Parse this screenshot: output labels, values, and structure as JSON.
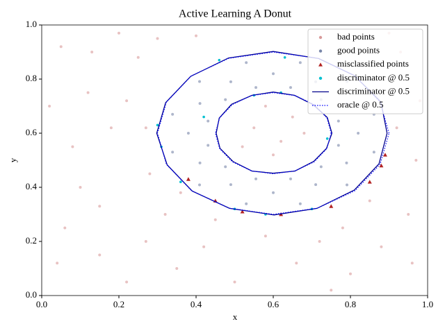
{
  "chart_data": {
    "type": "scatter",
    "title": "Active Learning A Donut",
    "xlabel": "x",
    "ylabel": "y",
    "xlim": [
      0,
      1
    ],
    "ylim": [
      0,
      1
    ],
    "xticks": [
      {
        "value": 0,
        "label": "0.0"
      },
      0.2,
      0.4,
      0.6,
      0.8,
      {
        "value": 1,
        "label": "1.0"
      }
    ],
    "yticks": [
      {
        "value": 0,
        "label": "0.0"
      },
      0.2,
      0.4,
      0.6,
      0.8,
      {
        "value": 1,
        "label": "1.0"
      }
    ],
    "legend": "upper right",
    "series": [
      {
        "name": "bad points",
        "color": "#d89a9a",
        "marker": "circle",
        "x": [
          0.05,
          0.12,
          0.08,
          0.15,
          0.04,
          0.22,
          0.18,
          0.25,
          0.1,
          0.02,
          0.27,
          0.35,
          0.42,
          0.5,
          0.58,
          0.66,
          0.72,
          0.8,
          0.88,
          0.95,
          0.97,
          0.98,
          0.93,
          0.96,
          0.78,
          0.3,
          0.4,
          0.2,
          0.6,
          0.55,
          0.65,
          0.62,
          0.52,
          0.68,
          0.58,
          0.15,
          0.32,
          0.28,
          0.22,
          0.27,
          0.06,
          0.13,
          0.45,
          0.9,
          0.85,
          0.75,
          0.36,
          0.92
        ],
        "y": [
          0.92,
          0.75,
          0.55,
          0.33,
          0.12,
          0.05,
          0.62,
          0.88,
          0.4,
          0.7,
          0.2,
          0.1,
          0.18,
          0.05,
          0.22,
          0.12,
          0.2,
          0.08,
          0.18,
          0.3,
          0.5,
          0.72,
          0.9,
          0.12,
          0.25,
          0.95,
          0.96,
          0.97,
          0.52,
          0.62,
          0.66,
          0.57,
          0.55,
          0.6,
          0.7,
          0.15,
          0.3,
          0.45,
          0.72,
          0.62,
          0.25,
          0.9,
          0.28,
          0.97,
          0.35,
          0.02,
          0.38,
          0.62
        ]
      },
      {
        "name": "good points",
        "color": "#7886a8",
        "marker": "circle",
        "x": [
          0.82,
          0.79,
          0.71,
          0.6,
          0.49,
          0.41,
          0.38,
          0.41,
          0.49,
          0.6,
          0.71,
          0.79,
          0.861,
          0.791,
          0.67,
          0.53,
          0.409,
          0.339,
          0.339,
          0.409,
          0.53,
          0.67,
          0.791,
          0.861,
          0.769,
          0.724,
          0.645,
          0.555,
          0.476,
          0.431,
          0.431,
          0.476,
          0.555,
          0.645,
          0.724,
          0.769
        ],
        "y": [
          0.6,
          0.71,
          0.79,
          0.82,
          0.79,
          0.71,
          0.6,
          0.49,
          0.41,
          0.38,
          0.41,
          0.49,
          0.67,
          0.791,
          0.861,
          0.861,
          0.791,
          0.67,
          0.53,
          0.409,
          0.339,
          0.339,
          0.409,
          0.53,
          0.645,
          0.724,
          0.769,
          0.769,
          0.724,
          0.645,
          0.555,
          0.476,
          0.431,
          0.431,
          0.476,
          0.555
        ]
      },
      {
        "name": "misclassified points",
        "color": "#b22222",
        "marker": "triangle",
        "x": [
          0.45,
          0.52,
          0.62,
          0.75,
          0.85,
          0.89,
          0.38,
          0.88
        ],
        "y": [
          0.35,
          0.31,
          0.3,
          0.33,
          0.42,
          0.52,
          0.43,
          0.48
        ]
      },
      {
        "name": "discriminator @ 0.5",
        "color": "#00c0d0",
        "marker": "circle",
        "x": [
          0.3,
          0.31,
          0.36,
          0.5,
          0.58,
          0.7,
          0.46,
          0.62,
          0.55,
          0.42,
          0.74,
          0.63
        ],
        "y": [
          0.63,
          0.55,
          0.42,
          0.32,
          0.3,
          0.32,
          0.87,
          0.75,
          0.74,
          0.66,
          0.58,
          0.88
        ]
      },
      {
        "name": "discriminator @ 0.5",
        "color": "#00008b",
        "marker": "line",
        "x": [
          0.895,
          0.879,
          0.81,
          0.718,
          0.6,
          0.484,
          0.386,
          0.321,
          0.298,
          0.325,
          0.39,
          0.487,
          0.602,
          0.713,
          0.81,
          0.874,
          0.895,
          null,
          0.752,
          0.74,
          0.704,
          0.655,
          0.6,
          0.545,
          0.492,
          0.46,
          0.452,
          0.462,
          0.496,
          0.545,
          0.6,
          0.656,
          0.705,
          0.738,
          0.752
        ],
        "y": [
          0.6,
          0.716,
          0.813,
          0.876,
          0.902,
          0.878,
          0.81,
          0.713,
          0.6,
          0.483,
          0.386,
          0.322,
          0.298,
          0.322,
          0.39,
          0.487,
          0.6,
          null,
          0.6,
          0.658,
          0.705,
          0.74,
          0.752,
          0.74,
          0.707,
          0.656,
          0.6,
          0.544,
          0.495,
          0.46,
          0.452,
          0.46,
          0.496,
          0.544,
          0.6
        ]
      },
      {
        "name": "oracle @ 0.5",
        "color": "#0000ff",
        "marker": "dotted",
        "x": [
          0.9,
          0.877,
          0.812,
          0.715,
          0.6,
          0.485,
          0.388,
          0.323,
          0.3,
          0.323,
          0.388,
          0.485,
          0.6,
          0.715,
          0.812,
          0.877,
          0.9,
          null,
          0.75,
          0.739,
          0.706,
          0.657,
          0.6,
          0.543,
          0.494,
          0.461,
          0.45,
          0.461,
          0.494,
          0.543,
          0.6,
          0.657,
          0.706,
          0.739,
          0.75
        ],
        "y": [
          0.6,
          0.715,
          0.812,
          0.877,
          0.9,
          0.877,
          0.812,
          0.715,
          0.6,
          0.485,
          0.388,
          0.323,
          0.3,
          0.323,
          0.388,
          0.485,
          0.6,
          null,
          0.6,
          0.657,
          0.706,
          0.739,
          0.75,
          0.739,
          0.706,
          0.657,
          0.6,
          0.543,
          0.494,
          0.461,
          0.45,
          0.461,
          0.494,
          0.543,
          0.6
        ]
      }
    ]
  }
}
